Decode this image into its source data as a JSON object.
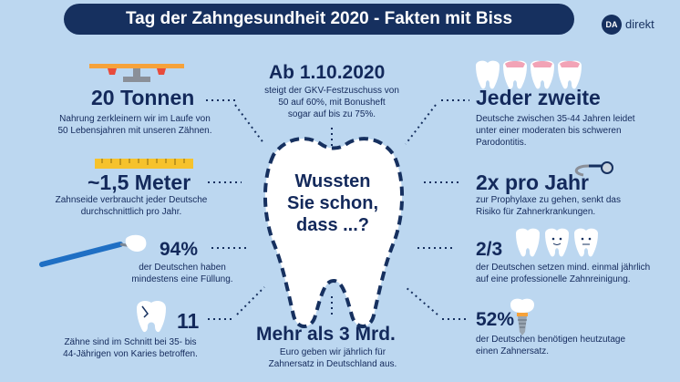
{
  "header": {
    "title": "Tag der Zahngesundheit 2020 - Fakten mit Biss"
  },
  "logo": {
    "mark": "DA",
    "text": "direkt"
  },
  "center": {
    "line1": "Wussten",
    "line2": "Sie schon,",
    "line3": "dass ...?"
  },
  "facts": {
    "tons": {
      "heading": "20 Tonnen",
      "line1": "Nahrung zerkleinern wir im Laufe von",
      "line2": "50 Lebensjahren mit unseren Zähnen."
    },
    "meter": {
      "heading": "~1,5 Meter",
      "line1": "Zahnseide verbraucht jeder Deutsche",
      "line2": "durchschnittlich pro Jahr."
    },
    "filling": {
      "heading": "94%",
      "line1": "der Deutschen haben",
      "line2": "mindestens eine Füllung."
    },
    "caries": {
      "heading": "11",
      "line1": "Zähne sind im Schnitt bei 35- bis",
      "line2": "44-Jährigen von Karies betroffen."
    },
    "date": {
      "heading": "Ab 1.10.2020",
      "line1": "steigt der GKV-Festzuschuss von",
      "line2": "50 auf 60%, mit Bonusheft",
      "line3": "sogar auf bis zu 75%."
    },
    "billions": {
      "heading": "Mehr als 3 Mrd.",
      "line1": "Euro geben wir jährlich für",
      "line2": "Zahnersatz in Deutschland aus."
    },
    "parodontitis": {
      "heading": "Jeder zweite",
      "line1": "Deutsche zwischen 35-44 Jahren leidet",
      "line2": "unter einer moderaten bis schweren",
      "line3": "Parodontitis."
    },
    "prophylaxe": {
      "heading": "2x pro Jahr",
      "line1": "zur Prophylaxe zu gehen, senkt das",
      "line2": "Risiko für Zahnerkrankungen."
    },
    "cleaning": {
      "heading": "2/3",
      "line1": "der Deutschen setzen mind. einmal jährlich",
      "line2": "auf eine professionelle Zahnreinigung."
    },
    "implant": {
      "heading": "52%",
      "line1": "der Deutschen benötigen heutzutage",
      "line2": "einen Zahnersatz."
    }
  },
  "colors": {
    "background": "#bcd7f0",
    "navy": "#16305f",
    "text": "#13295b",
    "gum": "#f2a3b6",
    "tooth": "#ffffff"
  }
}
